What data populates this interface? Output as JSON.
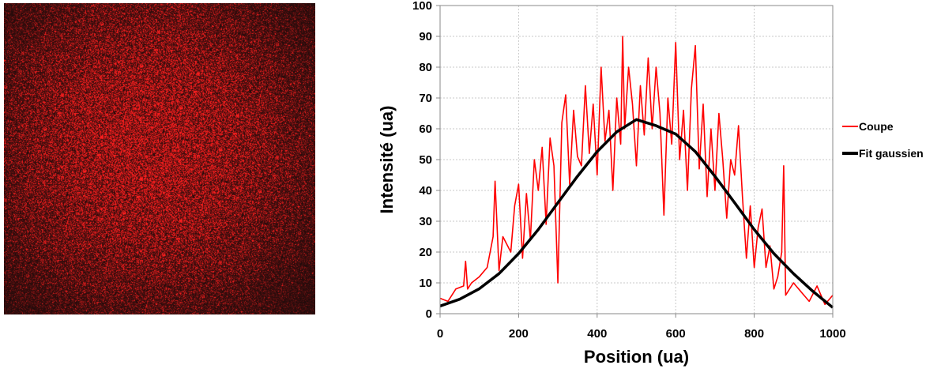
{
  "image_panel": {
    "icon": "speckle-image",
    "color": "#ff1a1a"
  },
  "chart_data": {
    "type": "line",
    "xlabel": "Position (ua)",
    "ylabel": "Intensité (ua)",
    "xlim": [
      0,
      1000
    ],
    "ylim": [
      0,
      100
    ],
    "xticks": [
      0,
      200,
      400,
      600,
      800,
      1000
    ],
    "yticks": [
      0,
      10,
      20,
      30,
      40,
      50,
      60,
      70,
      80,
      90,
      100
    ],
    "grid": true,
    "legend_position": "right",
    "series": [
      {
        "name": "Coupe",
        "color": "#ff0000",
        "x": [
          0,
          20,
          40,
          60,
          65,
          70,
          80,
          100,
          120,
          135,
          140,
          150,
          160,
          180,
          190,
          200,
          210,
          220,
          230,
          240,
          250,
          260,
          270,
          280,
          290,
          300,
          310,
          320,
          330,
          340,
          350,
          360,
          370,
          380,
          390,
          400,
          410,
          420,
          430,
          440,
          450,
          460,
          465,
          470,
          480,
          490,
          500,
          510,
          520,
          530,
          540,
          550,
          560,
          570,
          580,
          590,
          600,
          610,
          620,
          630,
          640,
          650,
          660,
          670,
          680,
          690,
          700,
          710,
          720,
          730,
          740,
          750,
          760,
          770,
          780,
          790,
          800,
          810,
          820,
          830,
          840,
          850,
          860,
          870,
          875,
          880,
          900,
          920,
          940,
          960,
          980,
          1000
        ],
        "y": [
          5,
          4,
          8,
          9,
          17,
          8,
          10,
          12,
          15,
          25,
          43,
          14,
          25,
          20,
          35,
          42,
          18,
          39,
          24,
          50,
          40,
          54,
          29,
          57,
          48,
          10,
          62,
          71,
          42,
          66,
          51,
          48,
          74,
          52,
          68,
          45,
          80,
          56,
          66,
          40,
          70,
          55,
          90,
          60,
          80,
          68,
          48,
          74,
          58,
          83,
          60,
          80,
          65,
          32,
          70,
          55,
          88,
          50,
          66,
          40,
          73,
          87,
          47,
          68,
          38,
          60,
          40,
          65,
          50,
          31,
          50,
          45,
          61,
          38,
          18,
          35,
          15,
          28,
          34,
          15,
          22,
          8,
          12,
          20,
          48,
          6,
          10,
          7,
          4,
          9,
          3,
          6
        ]
      },
      {
        "name": "Fit gaussien",
        "color": "#000000",
        "x": [
          0,
          50,
          100,
          150,
          200,
          250,
          300,
          350,
          400,
          450,
          500,
          550,
          600,
          650,
          700,
          750,
          800,
          850,
          900,
          950,
          1000
        ],
        "y": [
          2.5,
          4.7,
          8.1,
          13.0,
          19.5,
          27.3,
          36.0,
          44.6,
          52.6,
          59.0,
          63.0,
          61.0,
          58.3,
          52.6,
          44.6,
          36.0,
          27.3,
          19.5,
          13.0,
          7.2,
          2.0
        ]
      }
    ]
  }
}
